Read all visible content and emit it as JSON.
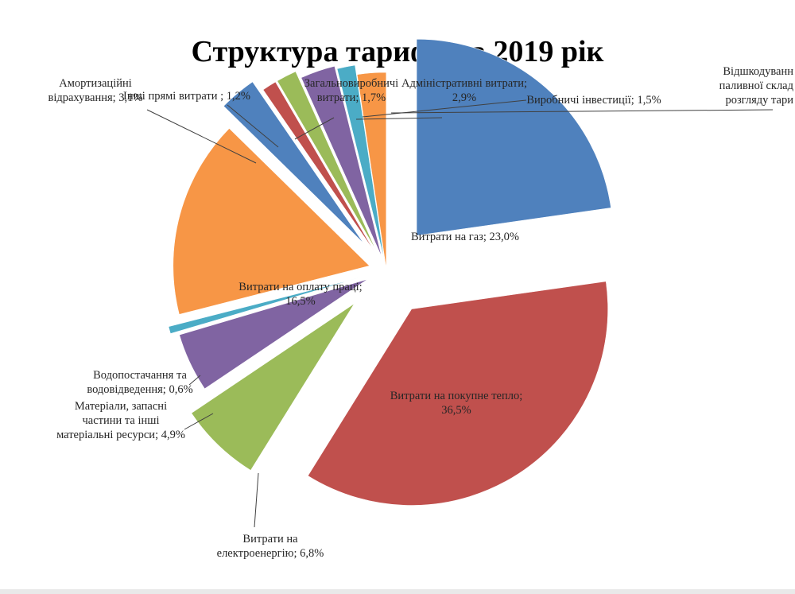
{
  "chart_data": {
    "type": "pie",
    "title": "Структура тарифу на 2019 рік",
    "slices": [
      {
        "key": "gas",
        "label_lines": [
          "Витрати на газ; 23,0%"
        ],
        "value": 23.0,
        "color": "#4f81bd"
      },
      {
        "key": "heat",
        "label_lines": [
          "Витрати на покупне тепло;",
          "36,5%"
        ],
        "value": 36.5,
        "color": "#c0504d"
      },
      {
        "key": "electric",
        "label_lines": [
          "Витрати на",
          "електроенергію; 6,8%"
        ],
        "value": 6.8,
        "color": "#9bbb59"
      },
      {
        "key": "materials",
        "label_lines": [
          "Матеріали, запасні",
          "частини та інші",
          "матеріальні ресурси; 4,9%"
        ],
        "value": 4.9,
        "color": "#8064a2"
      },
      {
        "key": "water",
        "label_lines": [
          "Водопостачання та",
          "водовідведення; 0,6%"
        ],
        "value": 0.6,
        "color": "#4bacc6"
      },
      {
        "key": "salary",
        "label_lines": [
          "Витрати на оплату праці;",
          "16,5%"
        ],
        "value": 16.5,
        "color": "#f79646"
      },
      {
        "key": "amort",
        "label_lines": [
          "Амортизаційні",
          "відрахування; 3,1%"
        ],
        "value": 3.1,
        "color": "#4f81bd"
      },
      {
        "key": "other",
        "label_lines": [
          "Інші прямі витрати ; 1,2%"
        ],
        "value": 1.2,
        "color": "#c0504d"
      },
      {
        "key": "general",
        "label_lines": [
          "Загальновиробничі",
          "витрати; 1,7%"
        ],
        "value": 1.7,
        "color": "#9bbb59"
      },
      {
        "key": "admin",
        "label_lines": [
          "Адміністративні витрати;",
          "2,9%"
        ],
        "value": 2.9,
        "color": "#8064a2"
      },
      {
        "key": "invest",
        "label_lines": [
          "Виробничі інвестиції; 1,5%"
        ],
        "value": 1.5,
        "color": "#4bacc6"
      },
      {
        "key": "reimb",
        "label_lines": [
          "Відшкодуванн",
          "паливної склад",
          "розгляду тари"
        ],
        "value": 2.4,
        "color": "#f79646"
      }
    ]
  }
}
